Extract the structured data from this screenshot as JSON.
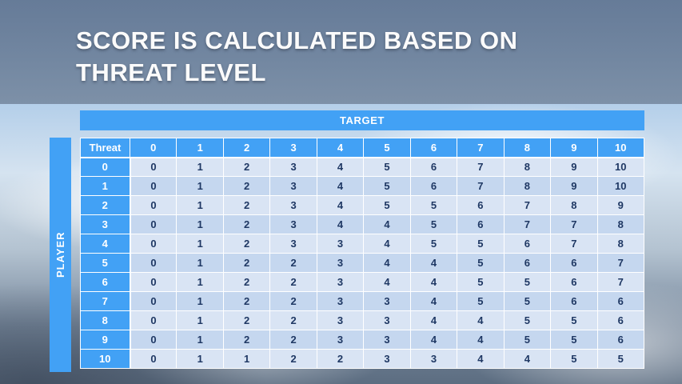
{
  "slide": {
    "title_line1": "SCORE IS CALCULATED BASED ON",
    "title_line2": "THREAT LEVEL"
  },
  "table": {
    "target_label": "TARGET",
    "player_label": "PLAYER",
    "corner_label": "Threat"
  },
  "colors": {
    "accent_blue": "#42A1F5",
    "row_light": "#D9E4F4",
    "row_dark": "#C5D7EF",
    "cell_text": "#1F3864"
  },
  "chart_data": {
    "type": "table",
    "title": "Score matrix by threat level",
    "col_axis_label": "TARGET",
    "row_axis_label": "PLAYER",
    "corner_label": "Threat",
    "columns": [
      "0",
      "1",
      "2",
      "3",
      "4",
      "5",
      "6",
      "7",
      "8",
      "9",
      "10"
    ],
    "rows": [
      {
        "label": "0",
        "values": [
          0,
          1,
          2,
          3,
          4,
          5,
          6,
          7,
          8,
          9,
          10
        ]
      },
      {
        "label": "1",
        "values": [
          0,
          1,
          2,
          3,
          4,
          5,
          6,
          7,
          8,
          9,
          10
        ]
      },
      {
        "label": "2",
        "values": [
          0,
          1,
          2,
          3,
          4,
          5,
          5,
          6,
          7,
          8,
          9
        ]
      },
      {
        "label": "3",
        "values": [
          0,
          1,
          2,
          3,
          4,
          4,
          5,
          6,
          7,
          7,
          8
        ]
      },
      {
        "label": "4",
        "values": [
          0,
          1,
          2,
          3,
          3,
          4,
          5,
          5,
          6,
          7,
          8
        ]
      },
      {
        "label": "5",
        "values": [
          0,
          1,
          2,
          2,
          3,
          4,
          4,
          5,
          6,
          6,
          7
        ]
      },
      {
        "label": "6",
        "values": [
          0,
          1,
          2,
          2,
          3,
          4,
          4,
          5,
          5,
          6,
          7
        ]
      },
      {
        "label": "7",
        "values": [
          0,
          1,
          2,
          2,
          3,
          3,
          4,
          5,
          5,
          6,
          6
        ]
      },
      {
        "label": "8",
        "values": [
          0,
          1,
          2,
          2,
          3,
          3,
          4,
          4,
          5,
          5,
          6
        ]
      },
      {
        "label": "9",
        "values": [
          0,
          1,
          2,
          2,
          3,
          3,
          4,
          4,
          5,
          5,
          6
        ]
      },
      {
        "label": "10",
        "values": [
          0,
          1,
          1,
          2,
          2,
          3,
          3,
          4,
          4,
          5,
          5
        ]
      }
    ]
  }
}
